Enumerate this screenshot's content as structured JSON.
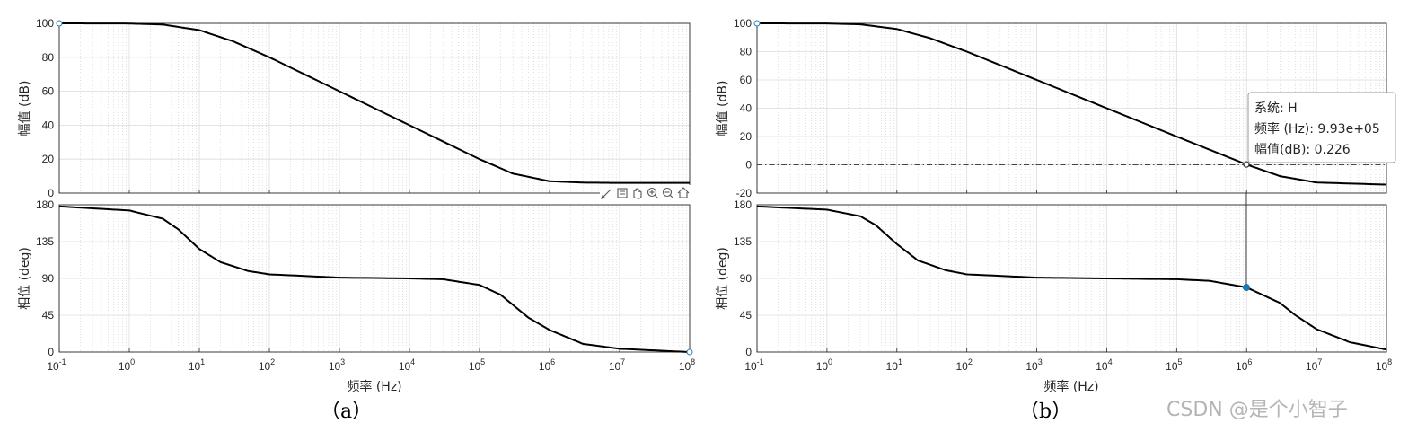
{
  "panels": [
    {
      "caption": "（a）",
      "xlabel": "频率 (Hz)",
      "toolbar_icons": [
        "brush-icon",
        "datatip-icon",
        "pan-hand-icon",
        "zoom-in-icon",
        "zoom-out-icon",
        "home-icon"
      ],
      "chart_data": [
        {
          "type": "line",
          "ylabel": "幅值 (dB)",
          "xscale": "log",
          "xlim": [
            0.1,
            100000000
          ],
          "ylim": [
            0,
            100
          ],
          "yticks": [
            0,
            20,
            40,
            60,
            80,
            100
          ],
          "grid": true,
          "x": [
            0.1,
            1,
            3,
            10,
            30,
            100,
            1000,
            10000,
            100000,
            300000,
            1000000,
            3000000,
            10000000,
            100000000
          ],
          "y": [
            100,
            99.9,
            99.3,
            96,
            89.5,
            80,
            60,
            40,
            20,
            11.5,
            7,
            6.2,
            6,
            6
          ]
        },
        {
          "type": "line",
          "ylabel": "相位 (deg)",
          "xscale": "log",
          "xlim": [
            0.1,
            100000000
          ],
          "ylim": [
            0,
            180
          ],
          "yticks": [
            0,
            45,
            90,
            135,
            180
          ],
          "xticks": [
            "10^-1",
            "10^0",
            "10^1",
            "10^2",
            "10^3",
            "10^4",
            "10^5",
            "10^6",
            "10^7",
            "10^8"
          ],
          "grid": true,
          "x": [
            0.1,
            1,
            3,
            5,
            10,
            20,
            50,
            100,
            1000,
            10000,
            30000,
            100000,
            200000,
            500000,
            1000000,
            3000000,
            10000000,
            100000000
          ],
          "y": [
            178,
            173,
            163,
            150,
            126,
            110,
            99,
            95,
            91,
            90,
            89,
            82,
            70,
            42,
            27,
            10,
            4,
            0
          ]
        }
      ]
    },
    {
      "caption": "（b）",
      "xlabel": "频率 (Hz)",
      "chart_data": [
        {
          "type": "line",
          "ylabel": "幅值 (dB)",
          "xscale": "log",
          "xlim": [
            0.1,
            100000000
          ],
          "ylim": [
            -20,
            100
          ],
          "yticks": [
            -20,
            0,
            20,
            40,
            60,
            80,
            100
          ],
          "grid": true,
          "reference_line": 0,
          "x": [
            0.1,
            1,
            3,
            10,
            30,
            100,
            1000,
            10000,
            100000,
            1000000,
            3000000,
            10000000,
            100000000
          ],
          "y": [
            100,
            99.9,
            99.3,
            96,
            89.5,
            80,
            60,
            40,
            20,
            0.2,
            -8,
            -12.5,
            -14
          ],
          "datatip": {
            "x": 993000,
            "y": 0.226,
            "lines": [
              "系统: H",
              "频率 (Hz): 9.93e+05",
              "幅值(dB): 0.226"
            ]
          }
        },
        {
          "type": "line",
          "ylabel": "相位 (deg)",
          "xscale": "log",
          "xlim": [
            0.1,
            100000000
          ],
          "ylim": [
            0,
            180
          ],
          "yticks": [
            0,
            45,
            90,
            135,
            180
          ],
          "xticks": [
            "10^-1",
            "10^0",
            "10^1",
            "10^2",
            "10^3",
            "10^4",
            "10^5",
            "10^6",
            "10^7",
            "10^8"
          ],
          "grid": true,
          "x": [
            0.1,
            1,
            3,
            5,
            10,
            20,
            50,
            100,
            1000,
            10000,
            100000,
            300000,
            1000000,
            3000000,
            5000000,
            10000000,
            30000000,
            100000000
          ],
          "y": [
            178,
            174,
            166,
            155,
            132,
            112,
            100,
            95,
            91,
            90,
            89,
            87,
            79,
            60,
            45,
            28,
            12,
            3
          ],
          "marker": {
            "x": 993000,
            "y": 79
          }
        }
      ]
    }
  ],
  "watermark": "CSDN @是个小智子"
}
